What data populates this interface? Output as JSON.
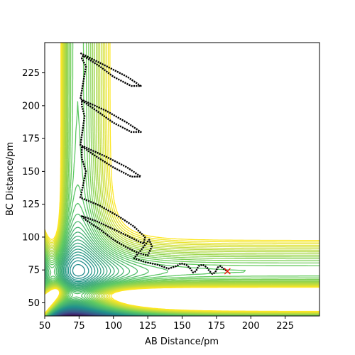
{
  "chart_data": {
    "type": "contour",
    "title": "",
    "xlabel": "AB Distance/pm",
    "ylabel": "BC Distance/pm",
    "xlim": [
      50,
      250
    ],
    "ylim": [
      40,
      248
    ],
    "xticks": [
      50,
      75,
      100,
      125,
      150,
      175,
      200,
      225
    ],
    "yticks": [
      50,
      75,
      100,
      125,
      150,
      175,
      200,
      225
    ],
    "colormap": [
      "#440154",
      "#3b528b",
      "#21918c",
      "#5ec962",
      "#fde725"
    ],
    "grid": false,
    "legend": "none",
    "series": [
      {
        "type": "trajectory",
        "style": "dotted black line",
        "color": "#000000",
        "points": [
          [
            76,
            240
          ],
          [
            95,
            230
          ],
          [
            110,
            222
          ],
          [
            120,
            215
          ],
          [
            113,
            215
          ],
          [
            100,
            222
          ],
          [
            90,
            230
          ],
          [
            78,
            238
          ],
          [
            77,
            236
          ],
          [
            80,
            230
          ],
          [
            76,
            205
          ],
          [
            95,
            196
          ],
          [
            110,
            187
          ],
          [
            120,
            180
          ],
          [
            113,
            180
          ],
          [
            100,
            187
          ],
          [
            88,
            196
          ],
          [
            77,
            204
          ],
          [
            77,
            200
          ],
          [
            79,
            192
          ],
          [
            76,
            170
          ],
          [
            95,
            161
          ],
          [
            110,
            153
          ],
          [
            120,
            146
          ],
          [
            113,
            146
          ],
          [
            100,
            153
          ],
          [
            88,
            161
          ],
          [
            77,
            169
          ],
          [
            77,
            160
          ],
          [
            80,
            150
          ],
          [
            76,
            130
          ],
          [
            90,
            124
          ],
          [
            105,
            115
          ],
          [
            115,
            108
          ],
          [
            123,
            100
          ],
          [
            122,
            95
          ],
          [
            112,
            100
          ],
          [
            100,
            106
          ],
          [
            88,
            112
          ],
          [
            77,
            116
          ],
          [
            80,
            113
          ],
          [
            90,
            106
          ],
          [
            100,
            98
          ],
          [
            110,
            92
          ],
          [
            118,
            88
          ],
          [
            125,
            86
          ],
          [
            128,
            93
          ],
          [
            126,
            98
          ],
          [
            120,
            90
          ],
          [
            115,
            84
          ],
          [
            123,
            81
          ],
          [
            132,
            79
          ],
          [
            140,
            76
          ],
          [
            146,
            78
          ],
          [
            149,
            80
          ],
          [
            153,
            79
          ],
          [
            156,
            76
          ],
          [
            158,
            73
          ],
          [
            160,
            74
          ],
          [
            162,
            78
          ],
          [
            165,
            79
          ],
          [
            168,
            77
          ],
          [
            170,
            74
          ],
          [
            172,
            72
          ],
          [
            174,
            73
          ],
          [
            176,
            77
          ],
          [
            178,
            78
          ],
          [
            180,
            76
          ],
          [
            183,
            74
          ]
        ]
      },
      {
        "type": "marker",
        "marker": "x",
        "color": "#ff0000",
        "points": [
          [
            183,
            74
          ]
        ]
      }
    ]
  }
}
